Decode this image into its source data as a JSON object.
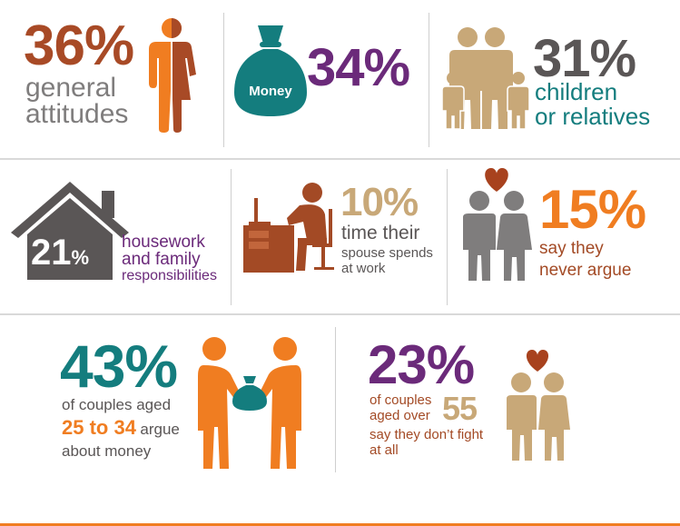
{
  "colors": {
    "rust": "#a84a26",
    "orange": "#f07d21",
    "gray": "#7f7d7d",
    "purple": "#6b2a7a",
    "teal": "#147d7e",
    "tan": "#c8a878",
    "dark_gray": "#5a5656",
    "brown": "#a34a25",
    "heart": "#a8421e",
    "divider": "#d9d9d9",
    "bottom_rule": "#f07d21"
  },
  "stats": [
    {
      "value": "36%",
      "label_line1": "general",
      "label_line2": "attitudes",
      "icon": "half-person-icon"
    },
    {
      "value": "34%",
      "bag_label": "Money",
      "icon": "money-bag-icon"
    },
    {
      "value": "31%",
      "label_line1": "children",
      "label_line2": "or relatives",
      "icon": "family-icon"
    },
    {
      "value_num": "21",
      "value_pct": "%",
      "label_line1": "housework",
      "label_line2": "and family",
      "label_line3": "responsibilities",
      "icon": "house-icon"
    },
    {
      "value": "10%",
      "label_line1": "time their",
      "label_line2": "spouse spends",
      "label_line3": "at work",
      "icon": "desk-worker-icon"
    },
    {
      "value": "15%",
      "label_line1": "say they",
      "label_line2": "never argue",
      "icon": "couple-heart-icon"
    },
    {
      "value": "43%",
      "label_line1": "of couples aged",
      "highlight": "25 to 34",
      "label_line2_rest": "argue",
      "label_line3": "about money",
      "icon": "couple-money-icon"
    },
    {
      "value": "23%",
      "label_line1": "of couples",
      "label_line2": "aged over",
      "highlight": "55",
      "label_line3": "say they don’t fight",
      "label_line4": "at all",
      "icon": "elderly-couple-icon"
    }
  ],
  "chart_data": {
    "type": "table",
    "categories": [
      "general attitudes",
      "Money",
      "children or relatives",
      "housework and family responsibilities",
      "time their spouse spends at work",
      "say they never argue",
      "of couples aged 25 to 34 argue about money",
      "of couples aged over 55 say they don’t fight at all"
    ],
    "values": [
      36,
      34,
      31,
      21,
      10,
      15,
      43,
      23
    ]
  }
}
